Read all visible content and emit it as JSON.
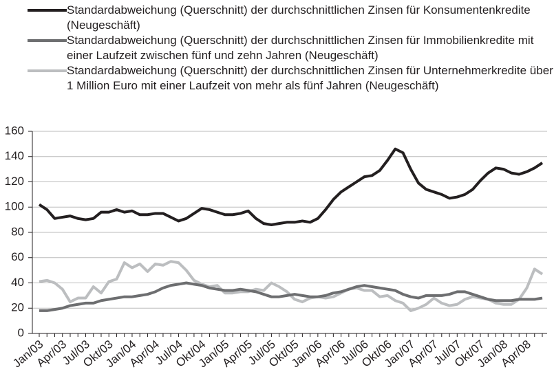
{
  "chart_data": {
    "type": "line",
    "categories": [
      "Jan/03",
      null,
      null,
      "Apr/03",
      null,
      null,
      "Jul/03",
      null,
      null,
      "Okt/03",
      null,
      null,
      "Jan/04",
      null,
      null,
      "Apr/04",
      null,
      null,
      "Jul/04",
      null,
      null,
      "Okt/04",
      null,
      null,
      "Jan/05",
      null,
      null,
      "Apr/05",
      null,
      null,
      "Jul/05",
      null,
      null,
      "Okt/05",
      null,
      null,
      "Jan/06",
      null,
      null,
      "Apr/06",
      null,
      null,
      "Jul/06",
      null,
      null,
      "Okt/06",
      null,
      null,
      "Jan/07",
      null,
      null,
      "Apr/07",
      null,
      null,
      "Jul/07",
      null,
      null,
      "Okt/07",
      null,
      null,
      "Jan/08",
      null,
      null,
      "Apr/08",
      null,
      null
    ],
    "series": [
      {
        "name": "Standardabweichung (Querschnitt) der durchschnittlichen Zinsen für Konsumentenkredite (Neugeschäft)",
        "color": "#231f20",
        "values": [
          102,
          98,
          91,
          92,
          93,
          91,
          90,
          91,
          96,
          96,
          98,
          96,
          97,
          94,
          94,
          95,
          95,
          92,
          89,
          91,
          95,
          99,
          98,
          96,
          94,
          94,
          95,
          97,
          91,
          87,
          86,
          87,
          88,
          88,
          89,
          88,
          91,
          98,
          106,
          112,
          116,
          120,
          124,
          125,
          129,
          137,
          146,
          143,
          130,
          119,
          114,
          112,
          110,
          107,
          108,
          110,
          114,
          121,
          127,
          131,
          130,
          127,
          126,
          128,
          131,
          135
        ]
      },
      {
        "name": "Standardabweichung (Querschnitt) der durchschnittlichen Zinsen für Immobilienkredite mit einer Laufzeit zwischen fünf und zehn Jahren (Neugeschäft)",
        "color": "#6d6e70",
        "values": [
          18,
          18,
          19,
          20,
          22,
          23,
          24,
          24,
          26,
          27,
          28,
          29,
          29,
          30,
          31,
          33,
          36,
          38,
          39,
          40,
          39,
          38,
          36,
          35,
          34,
          34,
          35,
          34,
          33,
          31,
          29,
          29,
          30,
          31,
          30,
          29,
          29,
          30,
          32,
          33,
          35,
          37,
          38,
          37,
          36,
          35,
          34,
          31,
          29,
          28,
          30,
          30,
          30,
          31,
          33,
          33,
          31,
          29,
          27,
          26,
          26,
          26,
          27,
          27,
          27,
          28
        ]
      },
      {
        "name": "Standardabweichung (Querschnitt) der durchschnittlichen Zinsen für Unternehmerkredite über 1 Million Euro mit einer Laufzeit von mehr als fünf Jahren (Neugeschäft)",
        "color": "#bcbec0",
        "values": [
          41,
          42,
          40,
          35,
          25,
          28,
          28,
          37,
          32,
          41,
          43,
          56,
          52,
          55,
          49,
          55,
          54,
          57,
          56,
          50,
          42,
          39,
          37,
          38,
          32,
          32,
          33,
          33,
          35,
          34,
          40,
          37,
          33,
          27,
          25,
          28,
          29,
          28,
          29,
          32,
          35,
          36,
          34,
          34,
          29,
          30,
          26,
          24,
          18,
          20,
          23,
          28,
          24,
          22,
          23,
          27,
          29,
          28,
          27,
          24,
          23,
          23,
          27,
          36,
          51,
          47
        ]
      }
    ],
    "ylim": [
      0,
      160
    ],
    "yticks": [
      0,
      20,
      40,
      60,
      80,
      100,
      120,
      140,
      160
    ],
    "grid": true
  }
}
